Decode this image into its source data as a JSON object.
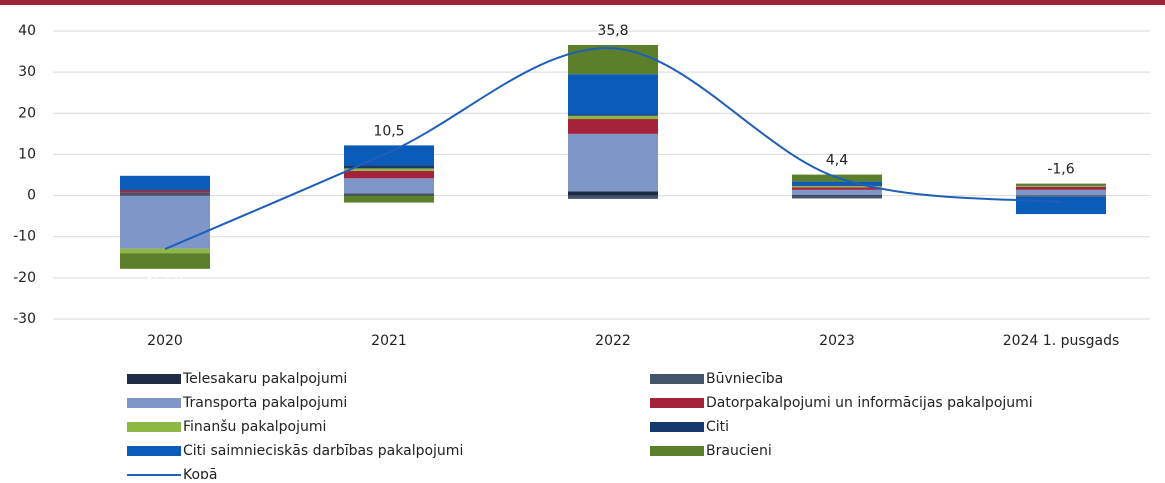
{
  "chart_data": {
    "type": "stacked-bar-line",
    "categories": [
      "2020",
      "2021",
      "2022",
      "2023",
      "2024 1. pusgads"
    ],
    "series": [
      {
        "name": "Telesakaru pakalpojumi",
        "color": "#1f2a44",
        "values": [
          0.3,
          0.3,
          1.0,
          0.2,
          0.1
        ]
      },
      {
        "name": "Būvniecība",
        "color": "#44546a",
        "values": [
          0.4,
          0.2,
          -0.8,
          -0.7,
          -0.3
        ]
      },
      {
        "name": " Transporta pakalpojumi",
        "color": "#7f96c8",
        "values": [
          -12.9,
          3.7,
          14.0,
          1.2,
          1.3
        ]
      },
      {
        "name": "Datorpakalpojumi un informācijas pakalpojumi",
        "color": "#a5233a",
        "values": [
          0.5,
          1.8,
          3.6,
          0.6,
          0.7
        ]
      },
      {
        "name": " Finanšu pakalpojumi",
        "color": "#8db843",
        "values": [
          -1.1,
          0.6,
          0.8,
          0.3,
          0.2
        ]
      },
      {
        "name": "Citi",
        "color": "#173a6e",
        "values": [
          0.3,
          0.8,
          0.3,
          0.2,
          0.1
        ]
      },
      {
        "name": "Citi saimnieciskās darbības pakalpojumi",
        "color": "#0a5cb8",
        "values": [
          3.3,
          4.8,
          9.8,
          0.9,
          -4.2
        ]
      },
      {
        "name": "Braucieni",
        "color": "#5b7f2b",
        "values": [
          -3.8,
          -1.7,
          7.1,
          1.7,
          0.5
        ]
      }
    ],
    "total": {
      "name": "Kopā",
      "color": "#1f5fb8",
      "values": [
        -13.0,
        10.5,
        35.8,
        4.4,
        -1.6
      ],
      "value_labels": [
        "-13,0",
        "10,5",
        "35,8",
        "4,4",
        "-1,6"
      ]
    },
    "ylim": [
      -30,
      40
    ],
    "yticks": [
      -30,
      -20,
      -10,
      0,
      10,
      20,
      30,
      40
    ],
    "grid": true
  }
}
